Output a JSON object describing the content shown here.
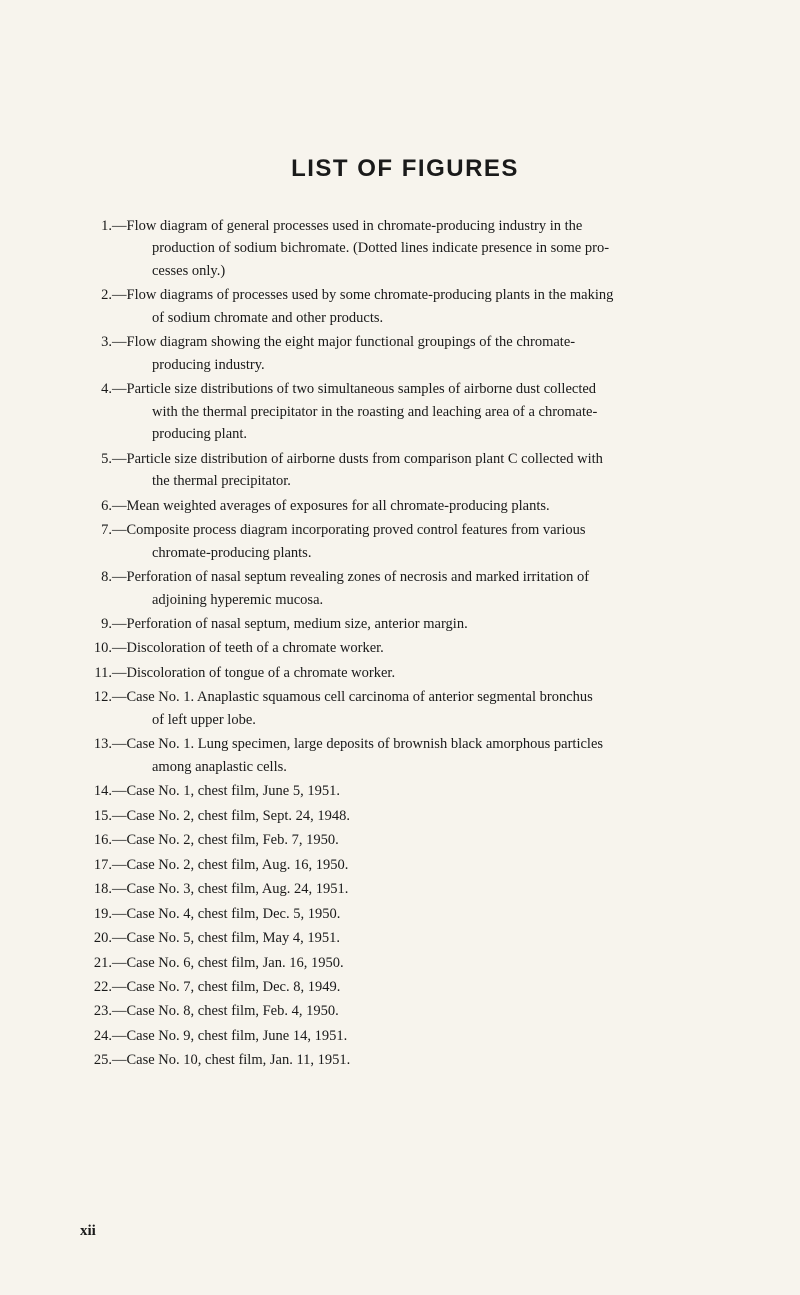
{
  "title": "LIST OF FIGURES",
  "page_number": "xii",
  "background_color": "#f7f4ed",
  "text_color": "#1a1a1a",
  "title_fontsize": 24,
  "body_fontsize": 14.5,
  "items": [
    {
      "num": "1.",
      "text_line1": "—Flow diagram of general processes used in chromate-producing industry in the",
      "text_cont": [
        "production of sodium bichromate. (Dotted lines indicate presence in some pro-",
        "cesses only.)"
      ]
    },
    {
      "num": "2.",
      "text_line1": "—Flow diagrams of processes used by some chromate-producing plants in the making",
      "text_cont": [
        "of sodium chromate and other products."
      ]
    },
    {
      "num": "3.",
      "text_line1": "—Flow diagram showing the eight major functional groupings of the chromate-",
      "text_cont": [
        "producing industry."
      ]
    },
    {
      "num": "4.",
      "text_line1": "—Particle size distributions of two simultaneous samples of airborne dust collected",
      "text_cont": [
        "with the thermal precipitator in the roasting and leaching area of a chromate-",
        "producing plant."
      ]
    },
    {
      "num": "5.",
      "text_line1": "—Particle size distribution of airborne dusts from comparison plant C collected with",
      "text_cont": [
        "the thermal precipitator."
      ]
    },
    {
      "num": "6.",
      "text_line1": "—Mean weighted averages of exposures for all chromate-producing plants.",
      "text_cont": []
    },
    {
      "num": "7.",
      "text_line1": "—Composite process diagram incorporating proved control features from various",
      "text_cont": [
        "chromate-producing plants."
      ]
    },
    {
      "num": "8.",
      "text_line1": "—Perforation of nasal septum revealing zones of necrosis and marked irritation of",
      "text_cont": [
        "adjoining hyperemic mucosa."
      ]
    },
    {
      "num": "9.",
      "text_line1": "—Perforation of nasal septum, medium size, anterior margin.",
      "text_cont": []
    },
    {
      "num": "10.",
      "text_line1": "—Discoloration of teeth of a chromate worker.",
      "text_cont": []
    },
    {
      "num": "11.",
      "text_line1": "—Discoloration of tongue of a chromate worker.",
      "text_cont": []
    },
    {
      "num": "12.",
      "text_line1": "—Case No. 1. Anaplastic squamous cell carcinoma of anterior segmental bronchus",
      "text_cont": [
        "of left upper lobe."
      ]
    },
    {
      "num": "13.",
      "text_line1": "—Case No. 1. Lung specimen, large deposits of brownish black amorphous particles",
      "text_cont": [
        "among anaplastic cells."
      ]
    },
    {
      "num": "14.",
      "text_line1": "—Case No. 1, chest film, June 5, 1951.",
      "text_cont": []
    },
    {
      "num": "15.",
      "text_line1": "—Case No. 2, chest film, Sept. 24, 1948.",
      "text_cont": []
    },
    {
      "num": "16.",
      "text_line1": "—Case No. 2, chest film, Feb. 7, 1950.",
      "text_cont": []
    },
    {
      "num": "17.",
      "text_line1": "—Case No. 2, chest film, Aug. 16, 1950.",
      "text_cont": []
    },
    {
      "num": "18.",
      "text_line1": "—Case No. 3, chest film, Aug. 24, 1951.",
      "text_cont": []
    },
    {
      "num": "19.",
      "text_line1": "—Case No. 4, chest film, Dec. 5, 1950.",
      "text_cont": []
    },
    {
      "num": "20.",
      "text_line1": "—Case No. 5, chest film, May 4, 1951.",
      "text_cont": []
    },
    {
      "num": "21.",
      "text_line1": "—Case No. 6, chest film, Jan. 16, 1950.",
      "text_cont": []
    },
    {
      "num": "22.",
      "text_line1": "—Case No. 7, chest film, Dec. 8, 1949.",
      "text_cont": []
    },
    {
      "num": "23.",
      "text_line1": "—Case No. 8, chest film, Feb. 4, 1950.",
      "text_cont": []
    },
    {
      "num": "24.",
      "text_line1": "—Case No. 9, chest film, June 14, 1951.",
      "text_cont": []
    },
    {
      "num": "25.",
      "text_line1": "—Case No. 10, chest film, Jan. 11, 1951.",
      "text_cont": []
    }
  ]
}
